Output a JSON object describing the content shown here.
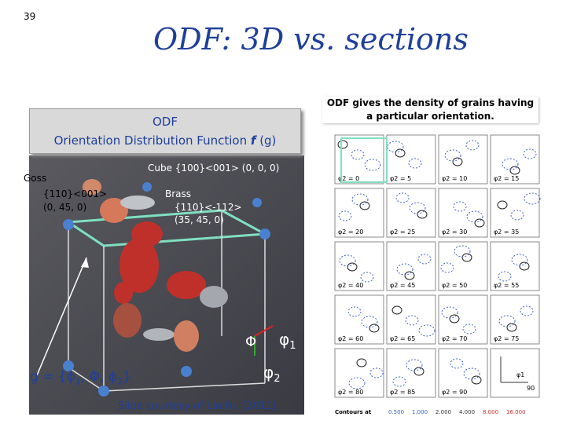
{
  "slide_number": "39",
  "title": "ODF: 3D vs. sections",
  "definition": {
    "line1": "ODF",
    "line2": "Orientation Distribution Function",
    "f": "f",
    "g": "(g)"
  },
  "note": "ODF gives the density of grains having a particular orientation.",
  "goss": {
    "name": "Goss",
    "miller": "{110}<001>",
    "angles": "(0, 45, 0)"
  },
  "cube": {
    "label": "Cube {100}<001> (0, 0, 0)"
  },
  "brass": {
    "name": "Brass",
    "miller": "{110}<-112>",
    "angles": "(35, 45, 0)"
  },
  "axes": {
    "Phi": "Φ",
    "phi1": "φ",
    "phi1_sub": "1",
    "phi2": "φ",
    "phi2_sub": "2"
  },
  "formula": {
    "a": "g = {ϕ",
    "s1": "1",
    "b": ", Φ, ϕ",
    "s2": "2",
    "c": "}"
  },
  "credit": "Slide courtesy of Lin Hu [2011]",
  "sections": [
    "φ2 = 0",
    "φ2 = 5",
    "φ2 = 10",
    "φ2 = 15",
    "φ2 = 20",
    "φ2 = 25",
    "φ2 = 30",
    "φ2 = 35",
    "φ2 = 40",
    "φ2 = 45",
    "φ2 = 50",
    "φ2 = 55",
    "φ2 = 60",
    "φ2 = 65",
    "φ2 = 70",
    "φ2 = 75",
    "φ2 = 80",
    "φ2 = 85",
    "φ2 = 90"
  ],
  "section_axis": {
    "label": "φ1",
    "tick": "90"
  },
  "contours": {
    "label": "Contours at",
    "levels": [
      "0.500",
      "1.000",
      "2.000",
      "4.000",
      "8.000",
      "16.000"
    ]
  }
}
